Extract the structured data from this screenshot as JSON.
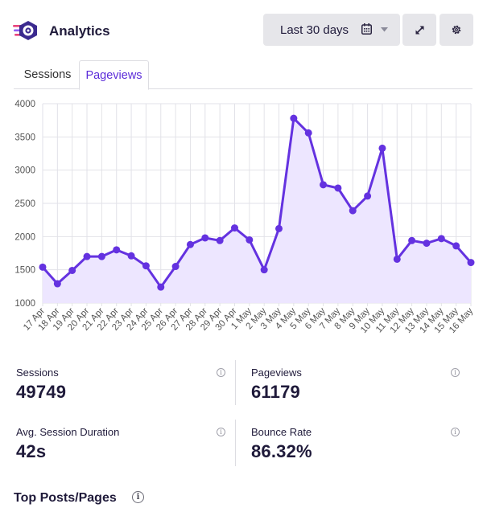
{
  "header": {
    "title": "Analytics",
    "date_range": "Last 30 days",
    "icons": {
      "logo": "analytics-logo-icon",
      "calendar": "calendar-icon",
      "dropdown": "chevron-down-icon",
      "expand": "expand-icon",
      "settings": "gear-icon"
    }
  },
  "tabs": [
    {
      "label": "Sessions",
      "active": false
    },
    {
      "label": "Pageviews",
      "active": true
    }
  ],
  "colors": {
    "accent": "#5b2bd9",
    "line": "#6432e0",
    "fill": "#ede6ff",
    "button_bg": "#e6e6ea"
  },
  "chart_data": {
    "type": "area",
    "x": [
      "17 Apr",
      "18 Apr",
      "19 Apr",
      "20 Apr",
      "21 Apr",
      "22 Apr",
      "23 Apr",
      "24 Apr",
      "25 Apr",
      "26 Apr",
      "27 Apr",
      "28 Apr",
      "29 Apr",
      "30 Apr",
      "1 May",
      "2 May",
      "3 May",
      "4 May",
      "5 May",
      "6 May",
      "7 May",
      "8 May",
      "9 May",
      "10 May",
      "11 May",
      "12 May",
      "13 May",
      "14 May",
      "15 May",
      "16 May"
    ],
    "series": [
      {
        "values": [
          1540,
          1290,
          1490,
          1700,
          1700,
          1800,
          1710,
          1560,
          1240,
          1550,
          1880,
          1980,
          1940,
          2130,
          1950,
          1500,
          2120,
          3780,
          3560,
          2780,
          2730,
          2390,
          2610,
          3330,
          1660,
          1940,
          1900,
          1970,
          1860,
          1610
        ]
      }
    ],
    "y_ticks": [
      "1000",
      "1500",
      "2000",
      "2500",
      "3000",
      "3500",
      "4000"
    ],
    "ylim": [
      1000,
      4000
    ],
    "grid": true,
    "legend": "none"
  },
  "stats": [
    {
      "label": "Sessions",
      "value": "49749"
    },
    {
      "label": "Pageviews",
      "value": "61179"
    },
    {
      "label": "Avg. Session Duration",
      "value": "42s"
    },
    {
      "label": "Bounce Rate",
      "value": "86.32%"
    }
  ],
  "info_glyph": "i",
  "top_posts": {
    "title": "Top Posts/Pages"
  }
}
